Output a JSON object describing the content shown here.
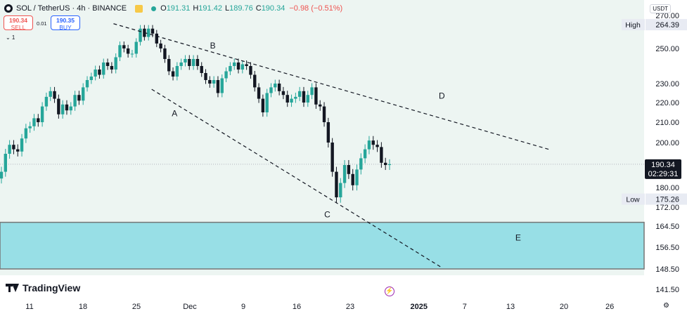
{
  "header": {
    "symbol": "SOL / TetherUS · 4h · BINANCE",
    "ohlc": [
      {
        "label": "O",
        "value": "191.31"
      },
      {
        "label": "H",
        "value": "191.42"
      },
      {
        "label": "L",
        "value": "189.76"
      },
      {
        "label": "C",
        "value": "190.34"
      }
    ],
    "change": "−0.98 (−0.51%)",
    "currency": "USDT"
  },
  "trade": {
    "sell_price": "190.34",
    "sell_label": "SELL",
    "buy_price": "190.35",
    "buy_label": "BUY",
    "spread": "0.01"
  },
  "indicator_collapse": "⌄ 1",
  "brand": "TradingView",
  "colors": {
    "up": "#26a69a",
    "down": "#131722",
    "background": "#edf5f2",
    "zone": "#98dfe6",
    "zone_border": "#757575",
    "pattern_line": "#131722"
  },
  "chart_data": {
    "type": "candlestick",
    "symbol": "SOL/USDT",
    "interval": "4h",
    "x_ticks": [
      "11",
      "18",
      "25",
      "Dec",
      "9",
      "16",
      "23",
      "2025",
      "7",
      "13",
      "20",
      "26"
    ],
    "y_ticks": [
      270.0,
      250.0,
      230.0,
      220.0,
      210.0,
      200.0,
      180.0,
      172.0,
      164.5,
      156.5,
      148.5,
      141.5
    ],
    "y_tick_labels": [
      "270.00",
      "250.00",
      "230.00",
      "220.00",
      "210.00",
      "200.00",
      "180.00",
      "172.00",
      "164.50",
      "156.50",
      "148.50",
      "141.50"
    ],
    "high": {
      "label": "High",
      "value": "264.39"
    },
    "low": {
      "label": "Low",
      "value": "175.26"
    },
    "last": {
      "price": "190.34",
      "countdown": "02:29:31"
    },
    "close_series": [
      187,
      195,
      199,
      197,
      196,
      202,
      207,
      208,
      212,
      210,
      218,
      223,
      226,
      222,
      214,
      219,
      216,
      218,
      224,
      221,
      228,
      232,
      234,
      238,
      235,
      242,
      240,
      238,
      245,
      252,
      250,
      247,
      247,
      254,
      262,
      257,
      262,
      259,
      253,
      250,
      244,
      237,
      234,
      240,
      242,
      244,
      240,
      244,
      240,
      236,
      232,
      230,
      232,
      225,
      233,
      237,
      240,
      242,
      238,
      241,
      240,
      235,
      228,
      222,
      215,
      225,
      228,
      230,
      226,
      224,
      220,
      222,
      223,
      226,
      220,
      224,
      228,
      219,
      218,
      210,
      200,
      187,
      176,
      182,
      190,
      186,
      181,
      188,
      193,
      197,
      201,
      199,
      198,
      191,
      190,
      190.34
    ],
    "annotations": [
      {
        "text": "A",
        "x": "Nov 30",
        "y": 213
      },
      {
        "text": "B",
        "x": "Dec 5",
        "y": 250
      },
      {
        "text": "C",
        "x": "Dec 20",
        "y": 168
      },
      {
        "text": "D",
        "x": "Jan 4",
        "y": 222
      },
      {
        "text": "E",
        "x": "Jan 14",
        "y": 159
      }
    ],
    "trendlines": [
      {
        "from": {
          "x": "Nov 22",
          "y": 265
        },
        "to": {
          "x": "Jan 18",
          "y": 197
        }
      },
      {
        "from": {
          "x": "Nov 27",
          "y": 227
        },
        "to": {
          "x": "Jan 4",
          "y": 149
        }
      }
    ],
    "zone": {
      "y_top": 166,
      "y_bottom": 148.5,
      "label": "E"
    }
  }
}
